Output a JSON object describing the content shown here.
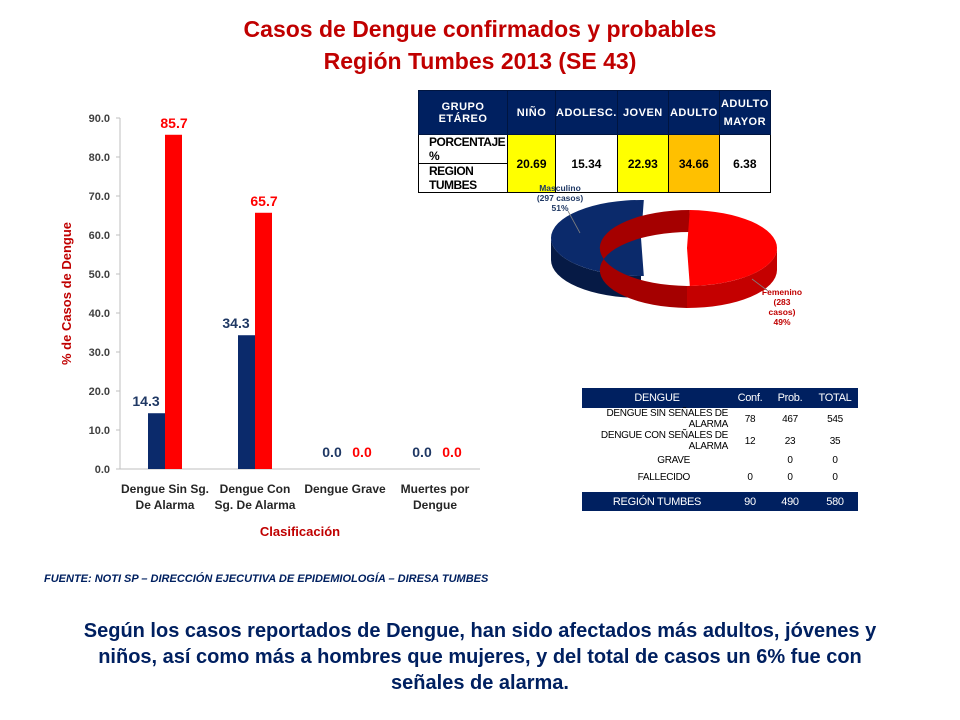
{
  "title": {
    "line1": "Casos de Dengue confirmados y probables",
    "line2": "Región Tumbes 2013 (SE 43)"
  },
  "chart_data": [
    {
      "type": "bar",
      "categories": [
        "Dengue Sin Sg.\nDe Alarma",
        "Dengue Con\nSg. De Alarma",
        "Dengue Grave",
        "Muertes por\nDengue"
      ],
      "series": [
        {
          "values": [
            14.3,
            34.3,
            0.0,
            0.0
          ],
          "color": "#0b2a6b",
          "label_color": "#1f3864"
        },
        {
          "values": [
            85.7,
            65.7,
            0.0,
            0.0
          ],
          "color": "#ff0000",
          "label_color": "#ff0000"
        }
      ],
      "xlabel": "Clasificación",
      "ylabel": "% de Casos de Dengue",
      "ylim": [
        0,
        90
      ],
      "yticks": [
        "0.0",
        "10.0",
        "20.0",
        "30.0",
        "40.0",
        "50.0",
        "60.0",
        "70.0",
        "80.0",
        "90.0"
      ],
      "grid": false
    },
    {
      "type": "pie",
      "slices": [
        {
          "label": "Masculino\n(297 casos)\n51%",
          "value": 51,
          "color": "#0b2a6b",
          "label_color": "#1f3864"
        },
        {
          "label": "Femenino\n(283\ncasos)\n49%",
          "value": 49,
          "color": "#ff0000",
          "label_color": "#c00000"
        }
      ]
    }
  ],
  "age_table": {
    "headers": [
      "GRUPO ETÁREO",
      "NIÑO",
      "ADOLESC.",
      "JOVEN",
      "ADULTO",
      "ADULTO\nMAYOR"
    ],
    "row_labels": [
      "PORCENTAJE %",
      "REGION TUMBES"
    ],
    "values": [
      "20.69",
      "15.34",
      "22.93",
      "34.66",
      "6.38"
    ],
    "highlight": [
      "#ffff00",
      "",
      "#ffff00",
      "#ffc000",
      ""
    ]
  },
  "dengue_table": {
    "headers": [
      "DENGUE",
      "Conf.",
      "Prob.",
      "TOTAL"
    ],
    "rows": [
      [
        "DENGUE SIN SEÑALES DE ALARMA",
        "78",
        "467",
        "545"
      ],
      [
        "DENGUE CON SEÑALES DE ALARMA",
        "12",
        "23",
        "35"
      ],
      [
        "GRAVE",
        "",
        "0",
        "0"
      ],
      [
        "FALLECIDO",
        "0",
        "0",
        "0"
      ]
    ],
    "footer": [
      "REGIÓN TUMBES",
      "90",
      "490",
      "580"
    ]
  },
  "source": "FUENTE: NOTI SP – DIRECCIÓN EJECUTIVA DE EPIDEMIOLOGÍA – DIRESA TUMBES",
  "summary": "Según los casos reportados de Dengue, han sido afectados más adultos, jóvenes y niños, así como más a hombres que mujeres, y del total de casos un 6% fue con señales de alarma."
}
